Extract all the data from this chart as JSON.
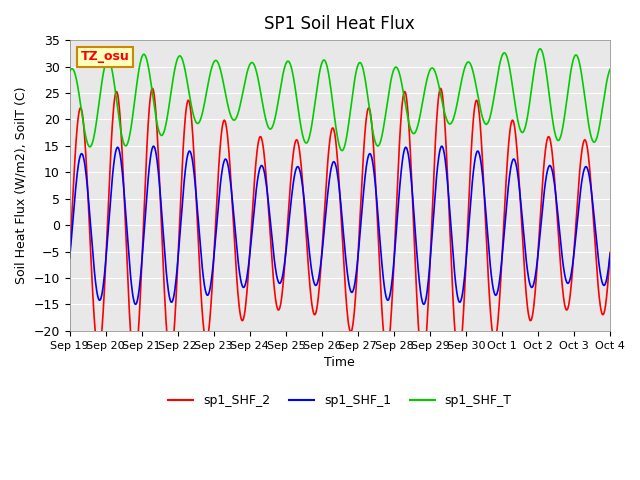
{
  "title": "SP1 Soil Heat Flux",
  "xlabel": "Time",
  "ylabel": "Soil Heat Flux (W/m2), SoilT (C)",
  "ylim": [
    -20,
    35
  ],
  "yticks": [
    -20,
    -15,
    -10,
    -5,
    0,
    5,
    10,
    15,
    20,
    25,
    30,
    35
  ],
  "n_days": 15,
  "xtick_labels": [
    "Sep 19",
    "Sep 20",
    "Sep 21",
    "Sep 22",
    "Sep 23",
    "Sep 24",
    "Sep 25",
    "Sep 26",
    "Sep 27",
    "Sep 28",
    "Sep 29",
    "Sep 30",
    "Oct 1",
    "Oct 2",
    "Oct 3",
    "Oct 4"
  ],
  "color_red": "#FF0000",
  "color_blue": "#0000FF",
  "color_green": "#00CC00",
  "bg_color": "#E8E8E8",
  "legend_labels": [
    "sp1_SHF_2",
    "sp1_SHF_1",
    "sp1_SHF_T"
  ],
  "annotation_text": "TZ_osu",
  "annotation_bg": "#FFFFC0",
  "annotation_border": "#CC8800"
}
